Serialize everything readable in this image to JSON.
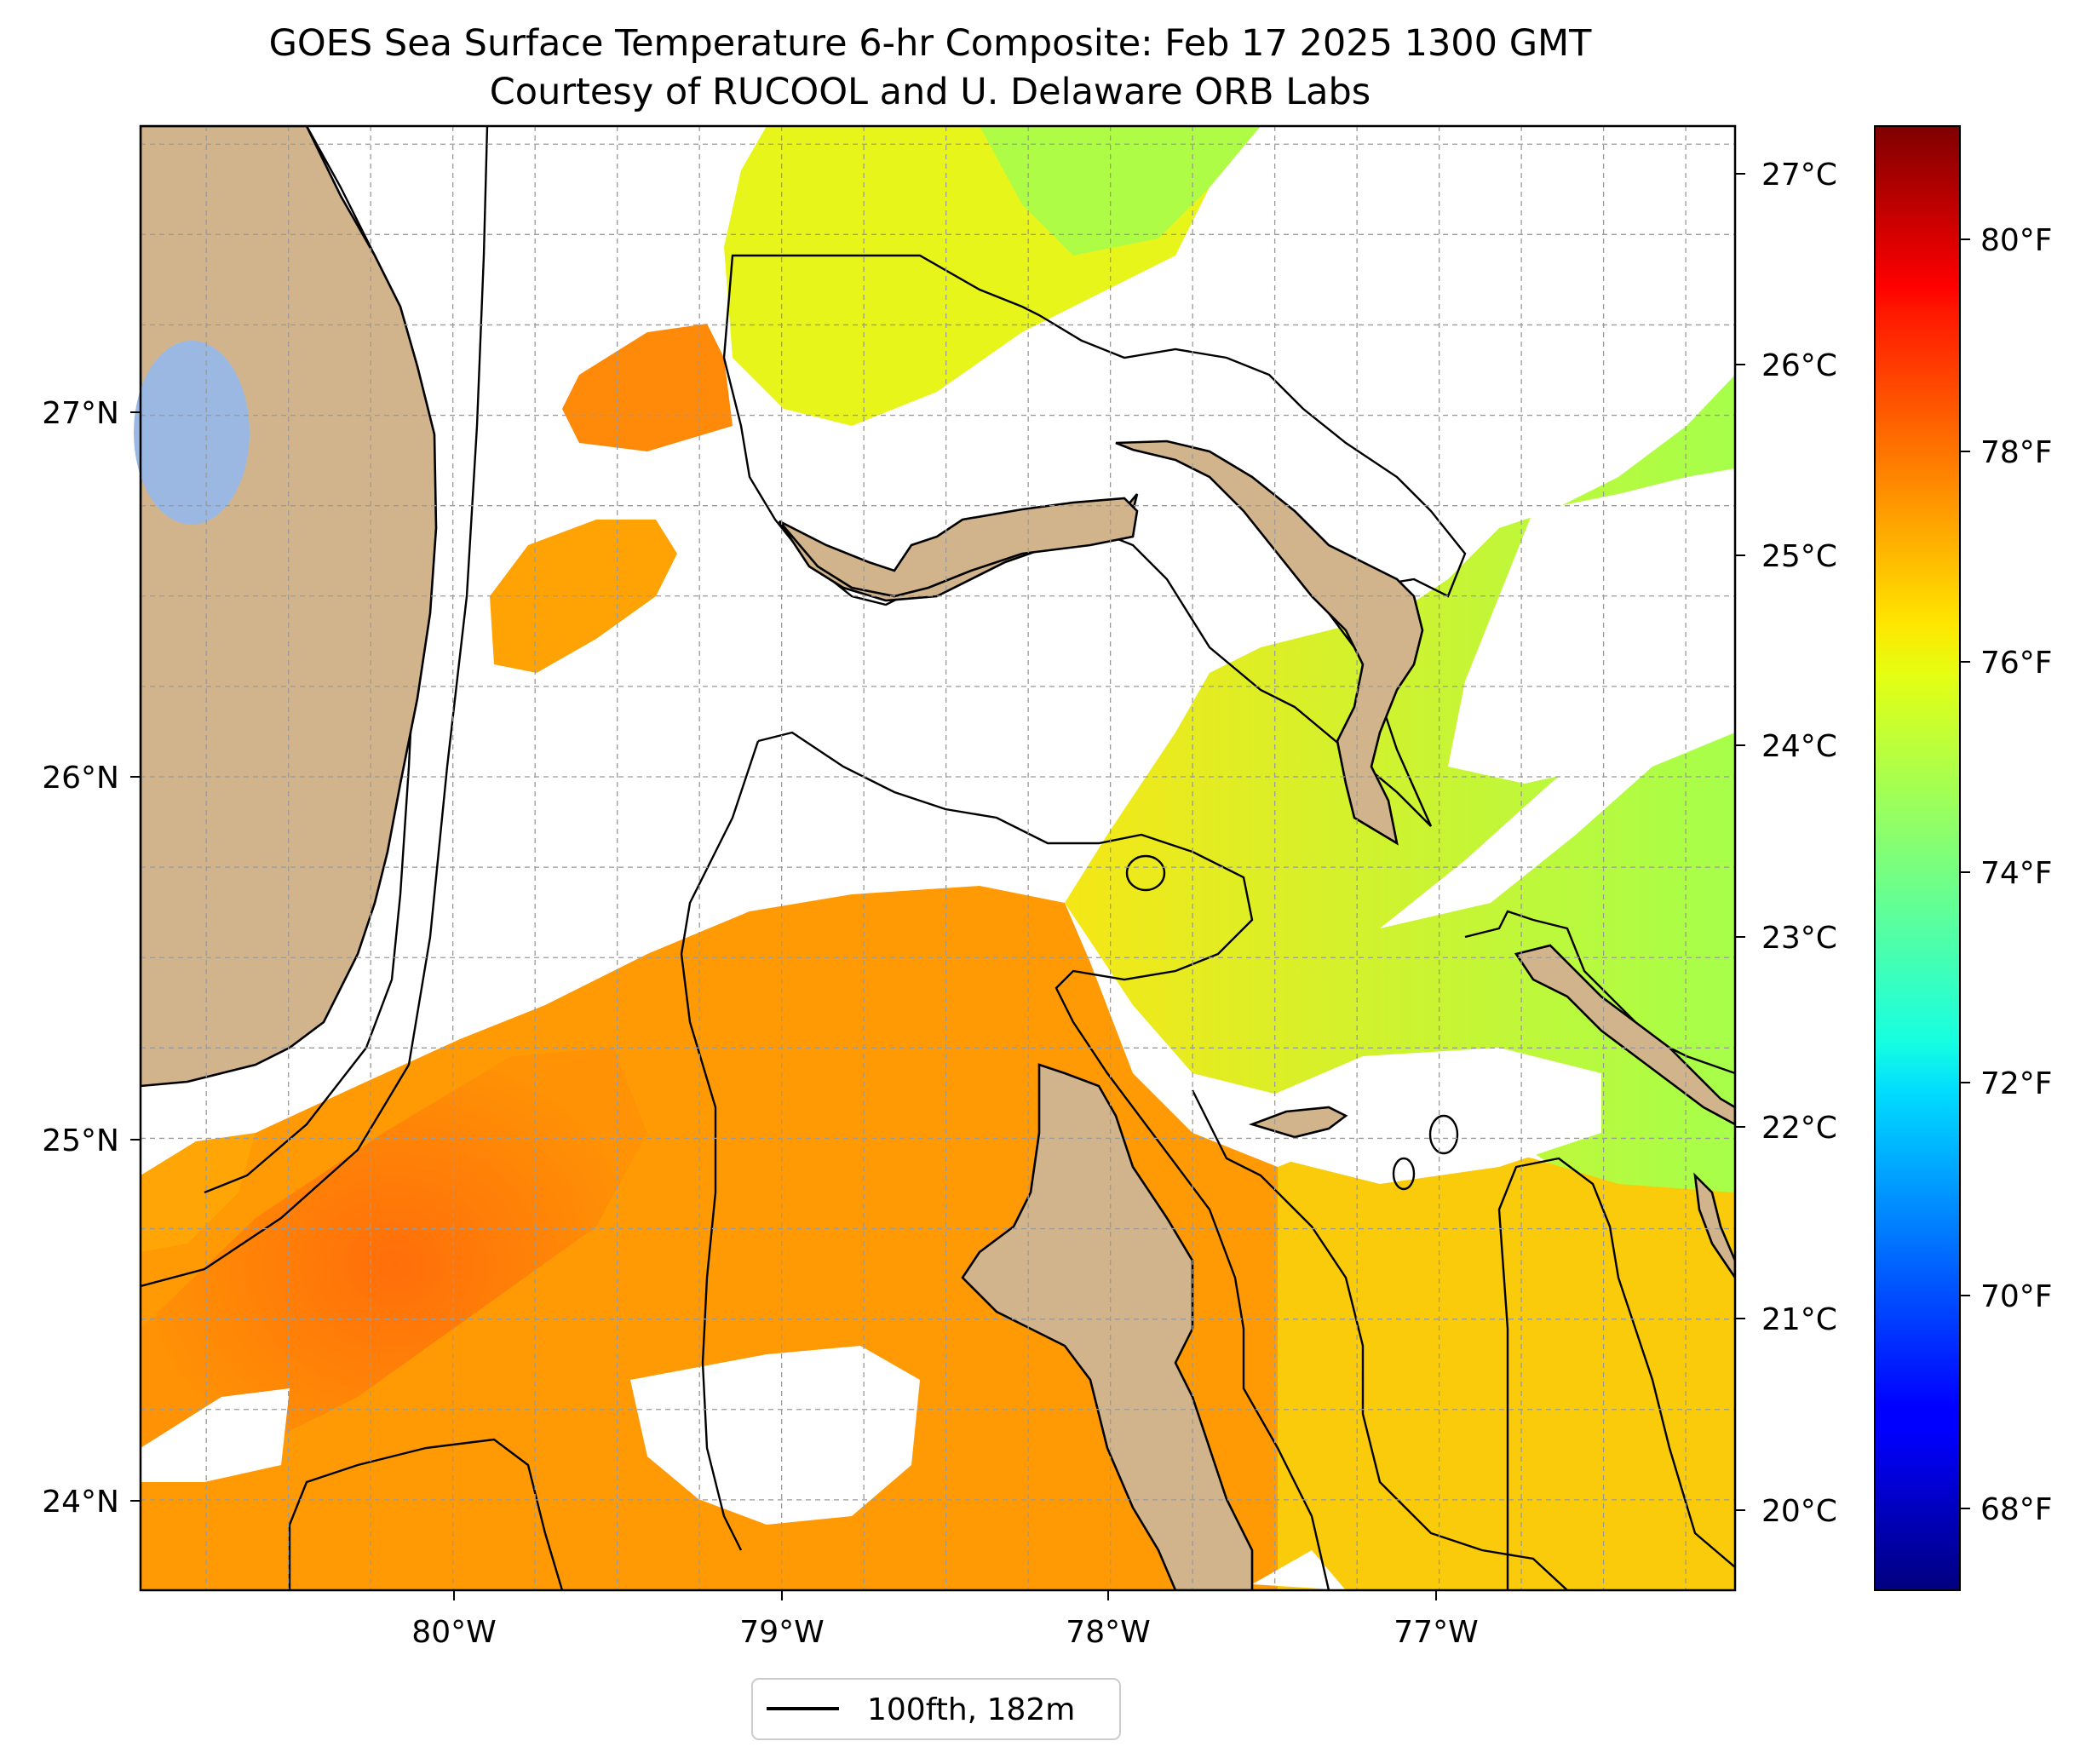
{
  "title": {
    "line1": "GOES Sea Surface Temperature 6-hr Composite: Feb 17 2025 1300 GMT",
    "line2": "Courtesy of RUCOOL and U. Delaware ORB Labs"
  },
  "map": {
    "lon_range": [
      -80.95,
      -76.1
    ],
    "lat_range": [
      23.75,
      27.8
    ],
    "lon_ticks": [
      "80°W",
      "79°W",
      "78°W",
      "77°W"
    ],
    "lat_ticks": [
      "24°N",
      "25°N",
      "26°N",
      "27°N"
    ],
    "gridlines": true,
    "land_color": "#d2b48c",
    "lake_color": "#9bb8e3",
    "coastline_color": "#000000"
  },
  "colorbar": {
    "colormap": "jet",
    "celsius_ticks": [
      "20°C",
      "21°C",
      "22°C",
      "23°C",
      "24°C",
      "25°C",
      "26°C",
      "27°C"
    ],
    "fahrenheit_ticks": [
      "68°F",
      "70°F",
      "72°F",
      "74°F",
      "76°F",
      "78°F",
      "80°F"
    ],
    "fahrenheit_range": [
      67.0,
      81.5
    ]
  },
  "legend": {
    "label": "100fth, 182m",
    "placement": "bottom-center"
  }
}
